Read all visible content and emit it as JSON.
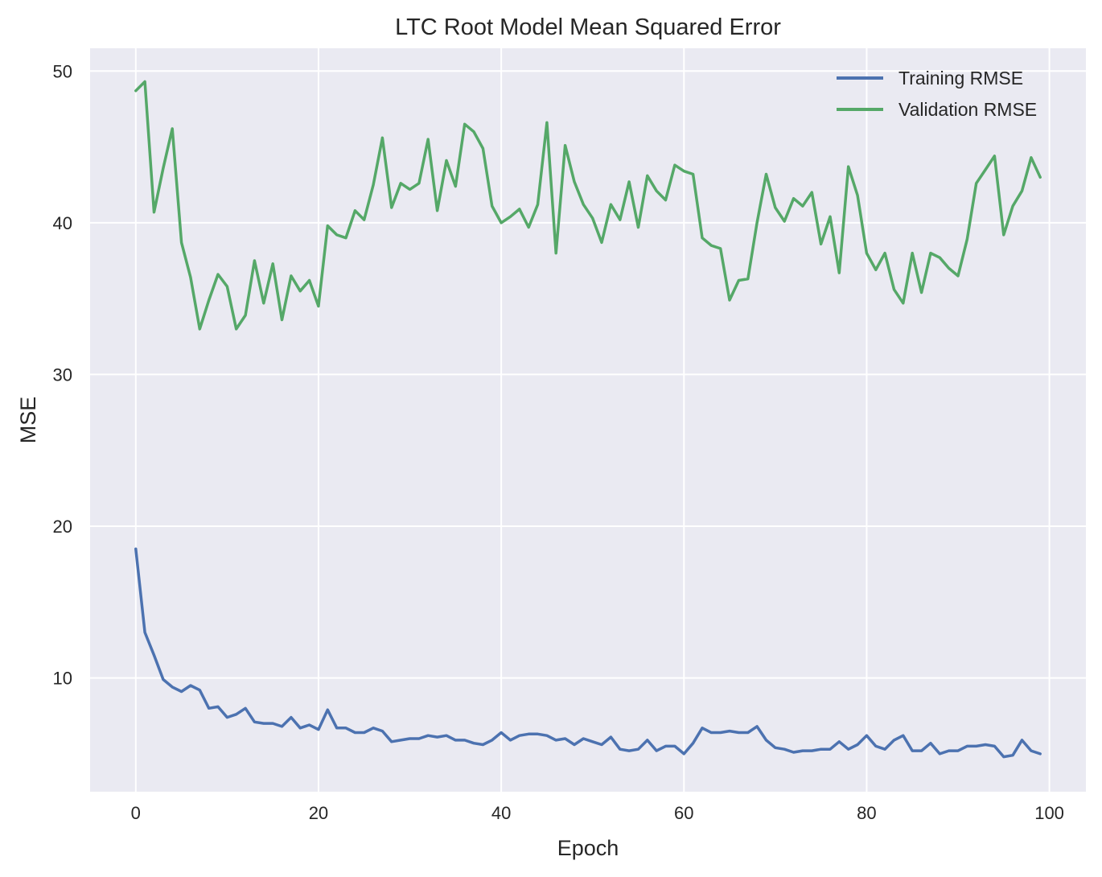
{
  "chart_data": {
    "type": "line",
    "title": "LTC Root Model Mean Squared Error",
    "xlabel": "Epoch",
    "ylabel": "MSE",
    "xlim": [
      -5,
      104
    ],
    "ylim": [
      2.5,
      51.5
    ],
    "xticks": [
      0,
      20,
      40,
      60,
      80,
      100
    ],
    "yticks": [
      10,
      20,
      30,
      40,
      50
    ],
    "grid": true,
    "legend_position": "top-right",
    "series": [
      {
        "name": "Training RMSE",
        "color": "#4c72b0",
        "x": [
          0,
          1,
          2,
          3,
          4,
          5,
          6,
          7,
          8,
          9,
          10,
          11,
          12,
          13,
          14,
          15,
          16,
          17,
          18,
          19,
          20,
          21,
          22,
          23,
          24,
          25,
          26,
          27,
          28,
          29,
          30,
          31,
          32,
          33,
          34,
          35,
          36,
          37,
          38,
          39,
          40,
          41,
          42,
          43,
          44,
          45,
          46,
          47,
          48,
          49,
          50,
          51,
          52,
          53,
          54,
          55,
          56,
          57,
          58,
          59,
          60,
          61,
          62,
          63,
          64,
          65,
          66,
          67,
          68,
          69,
          70,
          71,
          72,
          73,
          74,
          75,
          76,
          77,
          78,
          79,
          80,
          81,
          82,
          83,
          84,
          85,
          86,
          87,
          88,
          89,
          90,
          91,
          92,
          93,
          94,
          95,
          96,
          97,
          98,
          99
        ],
        "values": [
          18.5,
          13.0,
          11.5,
          9.9,
          9.4,
          9.1,
          9.5,
          9.2,
          8.0,
          8.1,
          7.4,
          7.6,
          8.0,
          7.1,
          7.0,
          7.0,
          6.8,
          7.4,
          6.7,
          6.9,
          6.6,
          7.9,
          6.7,
          6.7,
          6.4,
          6.4,
          6.7,
          6.5,
          5.8,
          5.9,
          6.0,
          6.0,
          6.2,
          6.1,
          6.2,
          5.9,
          5.9,
          5.7,
          5.6,
          5.9,
          6.4,
          5.9,
          6.2,
          6.3,
          6.3,
          6.2,
          5.9,
          6.0,
          5.6,
          6.0,
          5.8,
          5.6,
          6.1,
          5.3,
          5.2,
          5.3,
          5.9,
          5.2,
          5.5,
          5.5,
          5.0,
          5.7,
          6.7,
          6.4,
          6.4,
          6.5,
          6.4,
          6.4,
          6.8,
          5.9,
          5.4,
          5.3,
          5.1,
          5.2,
          5.2,
          5.3,
          5.3,
          5.8,
          5.3,
          5.6,
          6.2,
          5.5,
          5.3,
          5.9,
          6.2,
          5.2,
          5.2,
          5.7,
          5.0,
          5.2,
          5.2,
          5.5,
          5.5,
          5.6,
          5.5,
          4.8,
          4.9,
          5.9,
          5.2,
          5.0
        ]
      },
      {
        "name": "Validation RMSE",
        "color": "#55a868",
        "x": [
          0,
          1,
          2,
          3,
          4,
          5,
          6,
          7,
          8,
          9,
          10,
          11,
          12,
          13,
          14,
          15,
          16,
          17,
          18,
          19,
          20,
          21,
          22,
          23,
          24,
          25,
          26,
          27,
          28,
          29,
          30,
          31,
          32,
          33,
          34,
          35,
          36,
          37,
          38,
          39,
          40,
          41,
          42,
          43,
          44,
          45,
          46,
          47,
          48,
          49,
          50,
          51,
          52,
          53,
          54,
          55,
          56,
          57,
          58,
          59,
          60,
          61,
          62,
          63,
          64,
          65,
          66,
          67,
          68,
          69,
          70,
          71,
          72,
          73,
          74,
          75,
          76,
          77,
          78,
          79,
          80,
          81,
          82,
          83,
          84,
          85,
          86,
          87,
          88,
          89,
          90,
          91,
          92,
          93,
          94,
          95,
          96,
          97,
          98,
          99
        ],
        "values": [
          48.7,
          49.3,
          40.7,
          43.6,
          46.2,
          38.7,
          36.4,
          33.0,
          34.9,
          36.6,
          35.8,
          33.0,
          33.9,
          37.5,
          34.7,
          37.3,
          33.6,
          36.5,
          35.5,
          36.2,
          34.5,
          39.8,
          39.2,
          39.0,
          40.8,
          40.2,
          42.5,
          45.6,
          41.0,
          42.6,
          42.2,
          42.6,
          45.5,
          40.8,
          44.1,
          42.4,
          46.5,
          46.0,
          44.9,
          41.1,
          40.0,
          40.4,
          40.9,
          39.7,
          41.2,
          46.6,
          38.0,
          45.1,
          42.7,
          41.2,
          40.3,
          38.7,
          41.2,
          40.2,
          42.7,
          39.7,
          43.1,
          42.1,
          41.5,
          43.8,
          43.4,
          43.2,
          39.0,
          38.5,
          38.3,
          34.9,
          36.2,
          36.3,
          40.0,
          43.2,
          41.0,
          40.1,
          41.6,
          41.1,
          42.0,
          38.6,
          40.4,
          36.7,
          43.7,
          41.8,
          38.0,
          36.9,
          38.0,
          35.6,
          34.7,
          38.0,
          35.4,
          38.0,
          37.7,
          37.0,
          36.5,
          38.9,
          42.6,
          43.5,
          44.4,
          39.2,
          41.1,
          42.1,
          44.3,
          43.0
        ]
      }
    ]
  }
}
